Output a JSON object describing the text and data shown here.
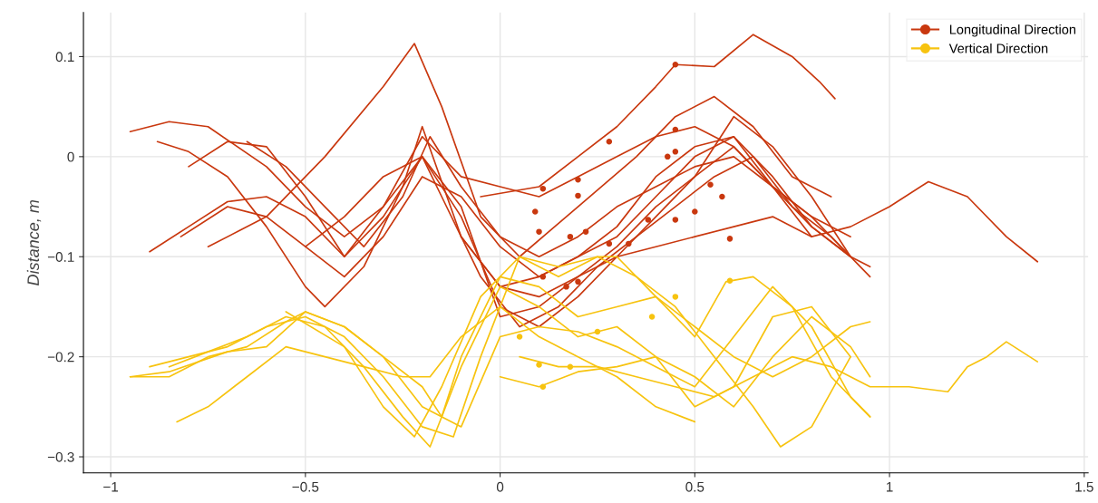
{
  "chart_data": {
    "type": "line",
    "ylabel": "Distance, m",
    "xlim": [
      -1.07,
      1.51
    ],
    "ylim": [
      -0.316,
      0.144
    ],
    "xticks": [
      {
        "value": -1,
        "label": "−1"
      },
      {
        "value": -0.5,
        "label": "−0.5"
      },
      0,
      0.5,
      1,
      1.5
    ],
    "yticks": [
      {
        "value": -0.3,
        "label": "−0.3"
      },
      {
        "value": -0.2,
        "label": "−0.2"
      },
      {
        "value": -0.1,
        "label": "−0.1"
      },
      0,
      0.1
    ],
    "grid": true,
    "legend": "top right",
    "series": [
      {
        "name": "Longitudinal Direction",
        "color": "#c9380f",
        "x": [
          -0.75,
          -0.6,
          -0.45,
          -0.3,
          -0.22,
          -0.15,
          -0.05,
          0.05,
          0.2,
          0.35,
          0.45,
          0.55,
          0.65,
          0.75,
          0.85
        ],
        "values": [
          -0.09,
          -0.06,
          0.0,
          0.07,
          0.113,
          0.05,
          -0.06,
          -0.1,
          -0.05,
          0.0,
          0.04,
          0.06,
          0.03,
          -0.02,
          -0.04
        ]
      },
      {
        "color": "#c9380f",
        "x": [
          -0.05,
          0.1,
          0.2,
          0.3,
          0.4,
          0.45,
          0.55,
          0.65,
          0.75,
          0.82,
          0.86
        ],
        "values": [
          -0.04,
          -0.03,
          0.0,
          0.03,
          0.07,
          0.092,
          0.09,
          0.122,
          0.1,
          0.075,
          0.058
        ]
      },
      {
        "color": "#c9380f",
        "x": [
          -0.95,
          -0.85,
          -0.75,
          -0.6,
          -0.5,
          -0.4,
          -0.3,
          -0.2,
          -0.1,
          0,
          0.1,
          0.2,
          0.3,
          0.4,
          0.5,
          0.6,
          0.7,
          0.8,
          0.9
        ],
        "values": [
          0.025,
          0.035,
          0.03,
          -0.01,
          -0.05,
          -0.08,
          -0.05,
          0.02,
          -0.02,
          -0.03,
          -0.04,
          -0.02,
          0.0,
          0.02,
          0.03,
          0.01,
          -0.03,
          -0.06,
          -0.08
        ]
      },
      {
        "color": "#c9380f",
        "x": [
          -0.88,
          -0.8,
          -0.7,
          -0.6,
          -0.5,
          -0.45,
          -0.35,
          -0.25,
          -0.2,
          -0.1,
          0,
          0.1,
          0.2,
          0.3,
          0.4,
          0.5,
          0.6,
          0.7,
          0.8,
          0.9,
          0.95
        ],
        "values": [
          0.015,
          0.005,
          -0.02,
          -0.07,
          -0.13,
          -0.15,
          -0.11,
          -0.03,
          0.03,
          -0.08,
          -0.13,
          -0.12,
          -0.1,
          -0.08,
          -0.04,
          0.0,
          0.02,
          -0.02,
          -0.07,
          -0.1,
          -0.11
        ]
      },
      {
        "color": "#c9380f",
        "x": [
          -0.9,
          -0.8,
          -0.7,
          -0.6,
          -0.5,
          -0.4,
          -0.3,
          -0.2,
          -0.15,
          -0.05,
          0.05,
          0.15,
          0.25,
          0.35,
          0.45,
          0.55,
          0.65,
          0.75,
          0.85,
          0.95
        ],
        "values": [
          -0.095,
          -0.07,
          -0.045,
          -0.04,
          -0.06,
          -0.1,
          -0.05,
          0.0,
          -0.04,
          -0.12,
          -0.17,
          -0.15,
          -0.11,
          -0.08,
          -0.05,
          -0.02,
          0.0,
          -0.05,
          -0.08,
          -0.12
        ]
      },
      {
        "color": "#c9380f",
        "x": [
          -0.8,
          -0.7,
          -0.6,
          -0.5,
          -0.4,
          -0.3,
          -0.2,
          -0.1,
          0,
          0.1,
          0.2,
          0.3,
          0.4,
          0.5,
          0.6,
          0.7,
          0.8
        ],
        "values": [
          -0.01,
          0.015,
          0.01,
          -0.04,
          -0.1,
          -0.06,
          0.0,
          -0.06,
          -0.15,
          -0.17,
          -0.14,
          -0.1,
          -0.06,
          -0.02,
          0.01,
          -0.03,
          -0.08
        ]
      },
      {
        "color": "#c9380f",
        "x": [
          -0.82,
          -0.7,
          -0.6,
          -0.5,
          -0.4,
          -0.3,
          -0.2,
          -0.1,
          0,
          0.1,
          0.2,
          0.3,
          0.4,
          0.5,
          0.6,
          0.7,
          0.8,
          0.9
        ],
        "values": [
          -0.08,
          -0.05,
          -0.06,
          -0.09,
          -0.12,
          -0.08,
          -0.02,
          -0.04,
          -0.09,
          -0.12,
          -0.1,
          -0.07,
          -0.02,
          0.01,
          0.02,
          -0.03,
          -0.07,
          -0.1
        ]
      },
      {
        "color": "#c9380f",
        "x": [
          -0.65,
          -0.55,
          -0.45,
          -0.35,
          -0.25,
          -0.18,
          -0.1,
          0,
          0.1,
          0.2,
          0.3,
          0.4,
          0.5,
          0.6,
          0.7,
          0.8,
          0.9
        ],
        "values": [
          0.015,
          -0.01,
          -0.05,
          -0.09,
          -0.04,
          0.02,
          -0.03,
          -0.08,
          -0.1,
          -0.08,
          -0.05,
          -0.03,
          -0.01,
          0.0,
          -0.03,
          -0.06,
          -0.1
        ]
      },
      {
        "color": "#c9380f",
        "x": [
          -0.1,
          0,
          0.1,
          0.2,
          0.3,
          0.4,
          0.5,
          0.6,
          0.7,
          0.8,
          0.9,
          1.0,
          1.1,
          1.2,
          1.3,
          1.38
        ],
        "values": [
          -0.08,
          -0.13,
          -0.14,
          -0.12,
          -0.1,
          -0.09,
          -0.08,
          -0.07,
          -0.06,
          -0.08,
          -0.07,
          -0.05,
          -0.025,
          -0.04,
          -0.08,
          -0.105
        ]
      },
      {
        "color": "#c9380f",
        "x": [
          -0.5,
          -0.4,
          -0.3,
          -0.2,
          -0.1,
          0,
          0.1,
          0.2,
          0.3,
          0.4,
          0.5,
          0.6,
          0.7,
          0.8,
          0.9
        ],
        "values": [
          -0.09,
          -0.06,
          -0.02,
          0.0,
          -0.05,
          -0.16,
          -0.15,
          -0.12,
          -0.09,
          -0.05,
          -0.02,
          0.04,
          0.01,
          -0.04,
          -0.1
        ]
      },
      {
        "type": "scatter",
        "color": "#c9380f",
        "marker": "circle",
        "x": [
          0.45,
          0.28,
          0.11,
          0.2,
          0.2,
          0.09,
          0.1,
          0.18,
          0.22,
          0.28,
          0.33,
          0.45,
          0.43,
          0.45,
          0.38,
          0.45,
          0.5,
          0.54,
          0.57,
          0.59,
          0.11,
          0.17,
          0.2
        ],
        "values": [
          0.092,
          0.015,
          -0.032,
          -0.023,
          -0.039,
          -0.055,
          -0.075,
          -0.08,
          -0.075,
          -0.087,
          -0.087,
          0.027,
          0.0,
          0.005,
          -0.063,
          -0.063,
          -0.055,
          -0.028,
          -0.04,
          -0.082,
          -0.12,
          -0.13,
          -0.125
        ]
      },
      {
        "name": "Vertical Direction",
        "color": "#f7c30f",
        "x": [
          -0.95,
          -0.85,
          -0.75,
          -0.65,
          -0.55,
          -0.5,
          -0.4,
          -0.3,
          -0.2,
          -0.15,
          -0.1,
          0,
          0.1,
          0.2,
          0.3,
          0.4,
          0.5,
          0.6,
          0.7,
          0.8,
          0.9,
          0.95
        ],
        "values": [
          -0.22,
          -0.22,
          -0.2,
          -0.19,
          -0.165,
          -0.155,
          -0.17,
          -0.2,
          -0.23,
          -0.26,
          -0.2,
          -0.12,
          -0.13,
          -0.16,
          -0.15,
          -0.14,
          -0.17,
          -0.2,
          -0.22,
          -0.2,
          -0.17,
          -0.165
        ]
      },
      {
        "color": "#f7c30f",
        "x": [
          -0.85,
          -0.75,
          -0.65,
          -0.55,
          -0.45,
          -0.35,
          -0.25,
          -0.18,
          -0.1,
          0,
          0.1,
          0.2,
          0.3,
          0.4,
          0.5,
          0.6,
          0.7,
          0.8,
          0.9
        ],
        "values": [
          -0.21,
          -0.195,
          -0.18,
          -0.16,
          -0.17,
          -0.21,
          -0.26,
          -0.29,
          -0.21,
          -0.13,
          -0.15,
          -0.18,
          -0.17,
          -0.2,
          -0.25,
          -0.23,
          -0.16,
          -0.15,
          -0.2
        ]
      },
      {
        "color": "#f7c30f",
        "x": [
          -0.83,
          -0.75,
          -0.65,
          -0.55,
          -0.45,
          -0.35,
          -0.25,
          -0.18,
          -0.1,
          0,
          0.1,
          0.2,
          0.3,
          0.4,
          0.5
        ],
        "values": [
          -0.265,
          -0.25,
          -0.22,
          -0.19,
          -0.2,
          -0.21,
          -0.22,
          -0.22,
          -0.18,
          -0.15,
          -0.18,
          -0.2,
          -0.22,
          -0.25,
          -0.265
        ]
      },
      {
        "color": "#f7c30f",
        "x": [
          -0.9,
          -0.8,
          -0.7,
          -0.6,
          -0.5,
          -0.4,
          -0.3,
          -0.2,
          -0.12,
          -0.05,
          0.05,
          0.15,
          0.25,
          0.35,
          0.45,
          0.55,
          0.65,
          0.72,
          0.8,
          0.9
        ],
        "values": [
          -0.21,
          -0.2,
          -0.19,
          -0.17,
          -0.16,
          -0.18,
          -0.22,
          -0.27,
          -0.28,
          -0.2,
          -0.1,
          -0.12,
          -0.1,
          -0.12,
          -0.15,
          -0.2,
          -0.25,
          -0.29,
          -0.27,
          -0.2
        ]
      },
      {
        "color": "#f7c30f",
        "x": [
          -0.95,
          -0.85,
          -0.7,
          -0.6,
          -0.5,
          -0.4,
          -0.3,
          -0.2,
          -0.1,
          0,
          0.1,
          0.2,
          0.3,
          0.4,
          0.5,
          0.6,
          0.7,
          0.8,
          0.9,
          0.95
        ],
        "values": [
          -0.22,
          -0.215,
          -0.195,
          -0.19,
          -0.155,
          -0.17,
          -0.2,
          -0.25,
          -0.27,
          -0.18,
          -0.17,
          -0.175,
          -0.19,
          -0.21,
          -0.23,
          -0.18,
          -0.13,
          -0.17,
          -0.24,
          -0.26
        ]
      },
      {
        "color": "#f7c30f",
        "x": [
          0.05,
          0.15,
          0.25,
          0.35,
          0.45,
          0.55,
          0.65,
          0.75,
          0.85,
          0.95,
          1.05,
          1.15,
          1.2,
          1.25,
          1.3,
          1.38
        ],
        "values": [
          -0.2,
          -0.21,
          -0.21,
          -0.22,
          -0.23,
          -0.24,
          -0.22,
          -0.2,
          -0.21,
          -0.23,
          -0.23,
          -0.235,
          -0.21,
          -0.2,
          -0.185,
          -0.205
        ]
      },
      {
        "color": "#f7c30f",
        "x": [
          0.0,
          0.1,
          0.2,
          0.3,
          0.4,
          0.5,
          0.6,
          0.7,
          0.8,
          0.9,
          0.95
        ],
        "values": [
          -0.22,
          -0.23,
          -0.215,
          -0.21,
          -0.2,
          -0.22,
          -0.25,
          -0.2,
          -0.16,
          -0.19,
          -0.22
        ]
      },
      {
        "color": "#f7c30f",
        "x": [
          -0.55,
          -0.4,
          -0.3,
          -0.22,
          -0.15,
          -0.05,
          0.05,
          0.15,
          0.25,
          0.3,
          0.4,
          0.5,
          0.58,
          0.65,
          0.75,
          0.85,
          0.95
        ],
        "values": [
          -0.155,
          -0.19,
          -0.25,
          -0.28,
          -0.23,
          -0.14,
          -0.1,
          -0.11,
          -0.1,
          -0.1,
          -0.14,
          -0.18,
          -0.125,
          -0.12,
          -0.15,
          -0.22,
          -0.26
        ]
      },
      {
        "type": "scatter",
        "color": "#f7c30f",
        "marker": "circle",
        "x": [
          0.11,
          0.1,
          0.18,
          0.59,
          0.45,
          0.39,
          0.05,
          0.25
        ],
        "values": [
          -0.23,
          -0.208,
          -0.21,
          -0.124,
          -0.14,
          -0.16,
          -0.18,
          -0.175
        ]
      }
    ]
  }
}
